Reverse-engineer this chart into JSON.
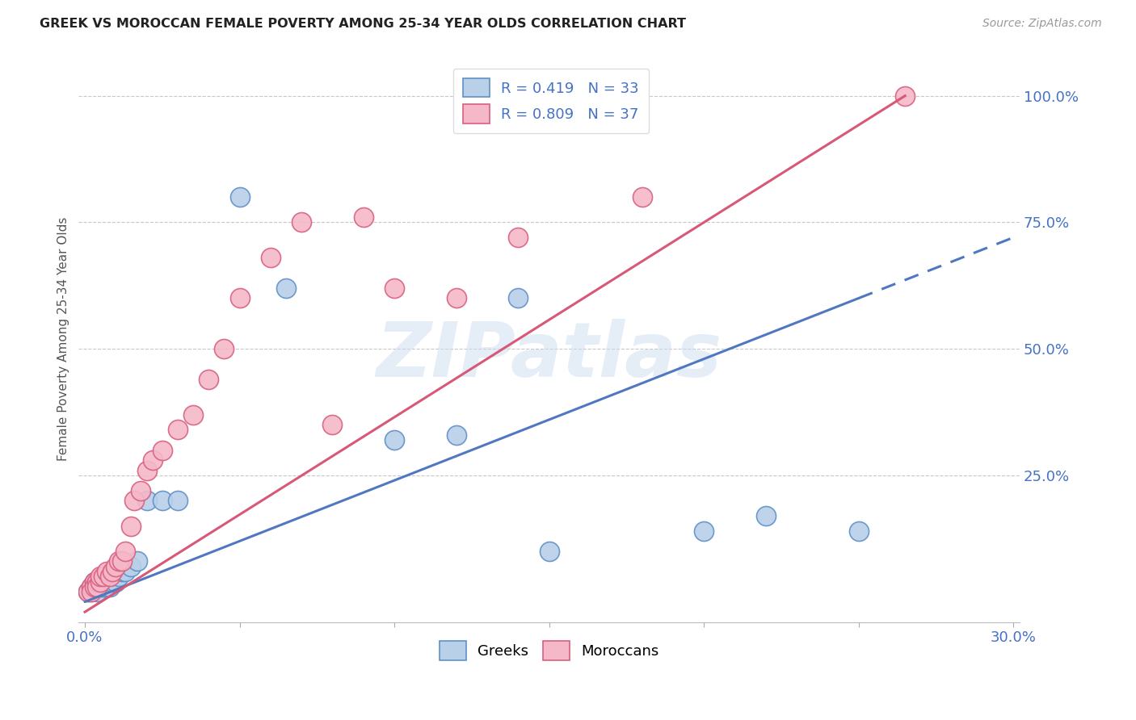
{
  "title": "GREEK VS MOROCCAN FEMALE POVERTY AMONG 25-34 YEAR OLDS CORRELATION CHART",
  "source": "Source: ZipAtlas.com",
  "ylabel": "Female Poverty Among 25-34 Year Olds",
  "xlim": [
    -0.002,
    0.302
  ],
  "ylim": [
    -0.04,
    1.08
  ],
  "xticks": [
    0.0,
    0.05,
    0.1,
    0.15,
    0.2,
    0.25,
    0.3
  ],
  "xticklabels": [
    "0.0%",
    "",
    "",
    "",
    "",
    "",
    "30.0%"
  ],
  "yticks_right": [
    0.25,
    0.5,
    0.75,
    1.0
  ],
  "ytickslabels_right": [
    "25.0%",
    "50.0%",
    "75.0%",
    "100.0%"
  ],
  "watermark": "ZIPatlas",
  "background_color": "#ffffff",
  "grid_color": "#c8c8c8",
  "greek_color": "#b8d0e8",
  "moroccan_color": "#f5b8c8",
  "greek_edge_color": "#6090c8",
  "moroccan_edge_color": "#d86080",
  "greek_line_color": "#5078c0",
  "moroccan_line_color": "#d85878",
  "greek_R": 0.419,
  "greek_N": 33,
  "moroccan_R": 0.809,
  "moroccan_N": 37,
  "greek_line_x0": 0.0,
  "greek_line_y0": 0.0,
  "greek_line_x1": 0.3,
  "greek_line_y1": 0.72,
  "greek_line_solid_end": 0.25,
  "moroccan_line_x0": 0.0,
  "moroccan_line_y0": -0.02,
  "moroccan_line_x1": 0.265,
  "moroccan_line_y1": 1.0,
  "greeks_x": [
    0.001,
    0.002,
    0.002,
    0.003,
    0.003,
    0.004,
    0.004,
    0.005,
    0.005,
    0.006,
    0.007,
    0.007,
    0.008,
    0.008,
    0.009,
    0.01,
    0.011,
    0.012,
    0.013,
    0.015,
    0.017,
    0.02,
    0.025,
    0.03,
    0.05,
    0.065,
    0.1,
    0.12,
    0.15,
    0.2,
    0.22,
    0.25,
    0.14
  ],
  "greeks_y": [
    0.02,
    0.03,
    0.02,
    0.04,
    0.03,
    0.03,
    0.02,
    0.04,
    0.03,
    0.03,
    0.04,
    0.03,
    0.04,
    0.03,
    0.04,
    0.04,
    0.05,
    0.06,
    0.06,
    0.07,
    0.08,
    0.2,
    0.2,
    0.2,
    0.8,
    0.62,
    0.32,
    0.33,
    0.1,
    0.14,
    0.17,
    0.14,
    0.6
  ],
  "moroccans_x": [
    0.001,
    0.002,
    0.002,
    0.003,
    0.003,
    0.004,
    0.004,
    0.005,
    0.005,
    0.006,
    0.007,
    0.008,
    0.009,
    0.01,
    0.011,
    0.012,
    0.013,
    0.015,
    0.016,
    0.018,
    0.02,
    0.022,
    0.025,
    0.03,
    0.035,
    0.04,
    0.045,
    0.05,
    0.06,
    0.07,
    0.08,
    0.09,
    0.1,
    0.12,
    0.14,
    0.18,
    0.265
  ],
  "moroccans_y": [
    0.02,
    0.03,
    0.02,
    0.04,
    0.03,
    0.04,
    0.03,
    0.04,
    0.05,
    0.05,
    0.06,
    0.05,
    0.06,
    0.07,
    0.08,
    0.08,
    0.1,
    0.15,
    0.2,
    0.22,
    0.26,
    0.28,
    0.3,
    0.34,
    0.37,
    0.44,
    0.5,
    0.6,
    0.68,
    0.75,
    0.35,
    0.76,
    0.62,
    0.6,
    0.72,
    0.8,
    1.0
  ]
}
